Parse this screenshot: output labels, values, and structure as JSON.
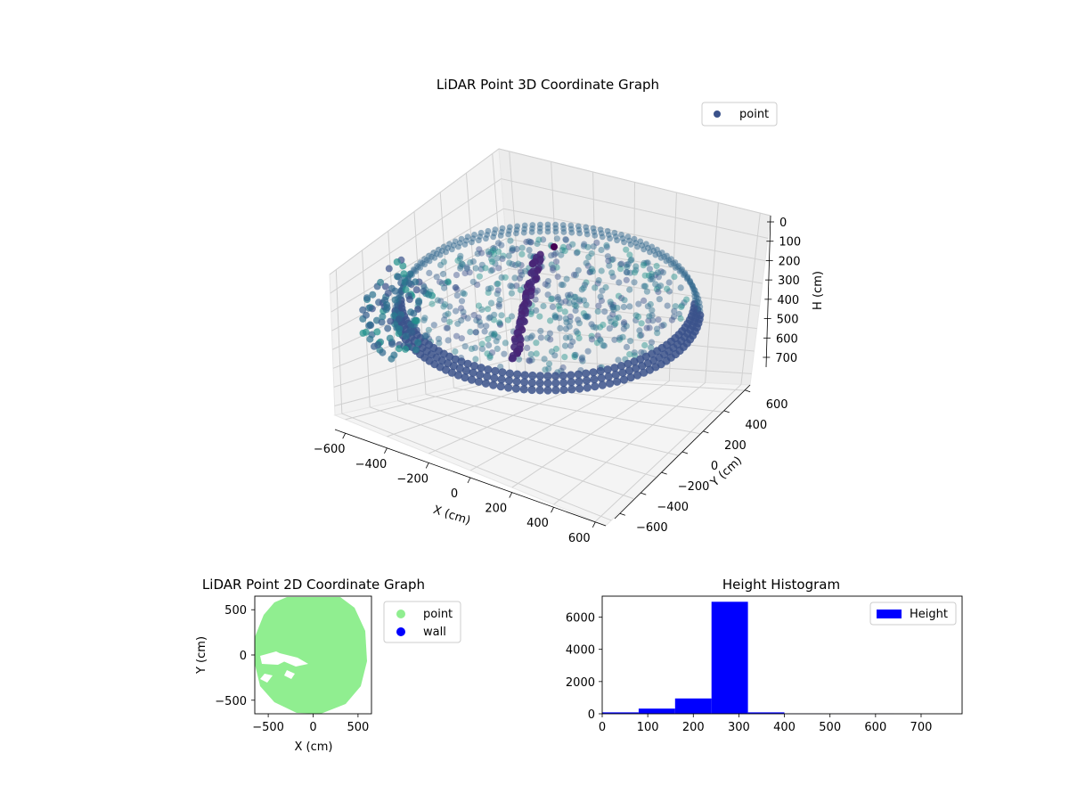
{
  "chart_data": [
    {
      "type": "scatter3d",
      "title": "LiDAR Point 3D Coordinate Graph",
      "xlabel": "X (cm)",
      "ylabel": "Y (cm)",
      "zlabel": "H (cm)",
      "legend": {
        "placement": "top-right",
        "entries": [
          "point"
        ]
      },
      "xticks": [
        "−600",
        "−400",
        "−200",
        "0",
        "200",
        "400",
        "600"
      ],
      "yticks": [
        "−600",
        "−400",
        "−200",
        "0",
        "200",
        "400",
        "600"
      ],
      "zticks": [
        "0",
        "100",
        "200",
        "300",
        "400",
        "500",
        "600",
        "700"
      ],
      "xlim": [
        -650,
        650
      ],
      "ylim": [
        -650,
        650
      ],
      "zlim": [
        0,
        750
      ],
      "z_inverted": true,
      "grid": true,
      "colormap": "viridis"
    },
    {
      "type": "scatter",
      "title": "LiDAR Point 2D Coordinate Graph",
      "xlabel": "X (cm)",
      "ylabel": "Y (cm)",
      "xticks": [
        "−500",
        "0",
        "500"
      ],
      "yticks": [
        "500",
        "0",
        "−500"
      ],
      "xlim": [
        -650,
        650
      ],
      "ylim": [
        -650,
        650
      ],
      "legend": {
        "placement": "outside-right",
        "entries": [
          {
            "name": "point",
            "color": "#90ee90"
          },
          {
            "name": "wall",
            "color": "#0000ff"
          }
        ]
      }
    },
    {
      "type": "bar",
      "title": "Height Histogram",
      "legend": {
        "placement": "top-right",
        "entries": [
          {
            "name": "Height",
            "color": "#0000ff"
          }
        ]
      },
      "xticks": [
        "0",
        "100",
        "200",
        "300",
        "400",
        "500",
        "600",
        "700"
      ],
      "yticks": [
        "0",
        "2000",
        "4000",
        "6000"
      ],
      "xlim": [
        0,
        790
      ],
      "ylim": [
        0,
        7300
      ],
      "bins": [
        {
          "x0": 0,
          "x1": 80,
          "count": 90
        },
        {
          "x0": 80,
          "x1": 160,
          "count": 320
        },
        {
          "x0": 160,
          "x1": 240,
          "count": 950
        },
        {
          "x0": 240,
          "x1": 320,
          "count": 6950
        },
        {
          "x0": 320,
          "x1": 400,
          "count": 90
        },
        {
          "x0": 400,
          "x1": 480,
          "count": 10
        },
        {
          "x0": 480,
          "x1": 560,
          "count": 5
        },
        {
          "x0": 560,
          "x1": 640,
          "count": 3
        },
        {
          "x0": 640,
          "x1": 720,
          "count": 2
        },
        {
          "x0": 720,
          "x1": 790,
          "count": 2
        }
      ]
    }
  ]
}
